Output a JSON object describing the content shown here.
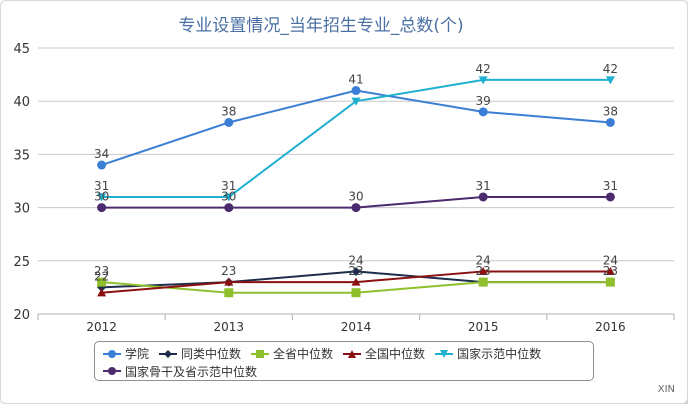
{
  "chart_data": {
    "type": "line",
    "title": "专业设置情况_当年招生专业_总数(个)",
    "categories": [
      "2012",
      "2013",
      "2014",
      "2015",
      "2016"
    ],
    "ylim": [
      20,
      45
    ],
    "yticks": [
      20,
      25,
      30,
      35,
      40,
      45
    ],
    "grid": true,
    "legend_position": "bottom",
    "series": [
      {
        "name": "学院",
        "values": [
          34,
          38,
          41,
          39,
          38
        ],
        "color": "#3a7fd5",
        "marker": "circle"
      },
      {
        "name": "同类中位数",
        "values": [
          22.5,
          23,
          24,
          23,
          23
        ],
        "color": "#1f2d4d",
        "marker": "diamond"
      },
      {
        "name": "全省中位数",
        "values": [
          23,
          22,
          22,
          23,
          23
        ],
        "color": "#8fbf2c",
        "marker": "square"
      },
      {
        "name": "全国中位数",
        "values": [
          22,
          23,
          23,
          24,
          24
        ],
        "color": "#8b1010",
        "marker": "triangle"
      },
      {
        "name": "国家示范中位数",
        "values": [
          31,
          31,
          40,
          42,
          42
        ],
        "color": "#1fb0d0",
        "marker": "triangle-down"
      },
      {
        "name": "国家骨干及省示范中位数",
        "values": [
          30,
          30,
          30,
          31,
          31
        ],
        "color": "#4b2a6e",
        "marker": "circle"
      }
    ],
    "data_labels": [
      {
        "category": "2012",
        "y": 34,
        "text": "34"
      },
      {
        "category": "2013",
        "y": 38,
        "text": "38"
      },
      {
        "category": "2014",
        "y": 41,
        "text": "41"
      },
      {
        "category": "2015",
        "y": 39,
        "text": "39"
      },
      {
        "category": "2016",
        "y": 38,
        "text": "38"
      },
      {
        "category": "2015",
        "y": 42,
        "text": "42"
      },
      {
        "category": "2016",
        "y": 42,
        "text": "42"
      },
      {
        "category": "2012",
        "y": 31,
        "text": "31"
      },
      {
        "category": "2013",
        "y": 31,
        "text": "31"
      },
      {
        "category": "2012",
        "y": 30,
        "text": "30"
      },
      {
        "category": "2013",
        "y": 30,
        "text": "30"
      },
      {
        "category": "2014",
        "y": 30,
        "text": "30"
      },
      {
        "category": "2015",
        "y": 31,
        "text": "31"
      },
      {
        "category": "2016",
        "y": 31,
        "text": "31"
      },
      {
        "category": "2012",
        "y": 23,
        "text": "23"
      },
      {
        "category": "2012",
        "y": 22.5,
        "text": "22"
      },
      {
        "category": "2013",
        "y": 23,
        "text": "23"
      },
      {
        "category": "2014",
        "y": 24,
        "text": "24"
      },
      {
        "category": "2014",
        "y": 23,
        "text": "23"
      },
      {
        "category": "2015",
        "y": 24,
        "text": "24"
      },
      {
        "category": "2015",
        "y": 23,
        "text": "23"
      },
      {
        "category": "2016",
        "y": 24,
        "text": "24"
      },
      {
        "category": "2016",
        "y": 23,
        "text": "23"
      }
    ]
  },
  "watermark": "XIN"
}
